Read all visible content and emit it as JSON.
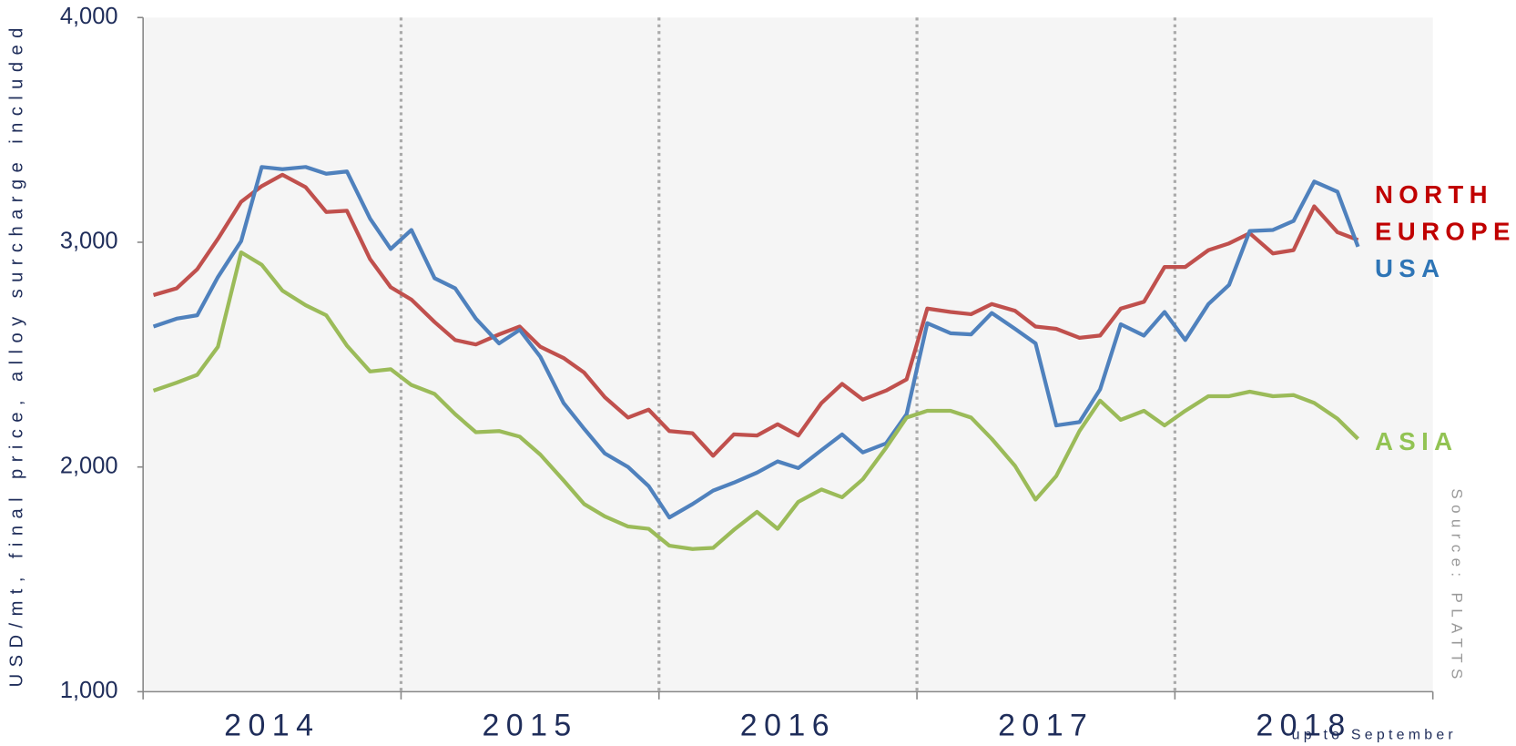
{
  "chart_data": {
    "type": "line",
    "y_label": "USD/mt, final price, alloy surcharge included",
    "source": "Source: PLATTS",
    "note": "up to September",
    "x_labels": [
      "2014",
      "2015",
      "2016",
      "2017",
      "2018"
    ],
    "xlim": [
      2014,
      2019
    ],
    "xticks": [
      2014,
      2015,
      2016,
      2017,
      2018,
      2019
    ],
    "ylim": [
      1000,
      4000
    ],
    "yticks": [
      {
        "value": 1000,
        "label": "1,000"
      },
      {
        "value": 2000,
        "label": "2,000"
      },
      {
        "value": 3000,
        "label": "3,000"
      },
      {
        "value": 4000,
        "label": "4,000"
      }
    ],
    "x": [
      2014.04,
      2014.13,
      2014.21,
      2014.29,
      2014.38,
      2014.46,
      2014.54,
      2014.63,
      2014.71,
      2014.79,
      2014.88,
      2014.96,
      2015.04,
      2015.13,
      2015.21,
      2015.29,
      2015.38,
      2015.46,
      2015.54,
      2015.63,
      2015.71,
      2015.79,
      2015.88,
      2015.96,
      2016.04,
      2016.13,
      2016.21,
      2016.29,
      2016.38,
      2016.46,
      2016.54,
      2016.63,
      2016.71,
      2016.79,
      2016.88,
      2016.96,
      2017.04,
      2017.13,
      2017.21,
      2017.29,
      2017.38,
      2017.46,
      2017.54,
      2017.63,
      2017.71,
      2017.79,
      2017.88,
      2017.96,
      2018.04,
      2018.13,
      2018.21,
      2018.29,
      2018.38,
      2018.46,
      2018.54,
      2018.63,
      2018.71
    ],
    "series": [
      {
        "name": "NORTH EUROPE",
        "color": "#c0504d",
        "label_color": "#c00000",
        "values": [
          2765,
          2795,
          2880,
          3015,
          3180,
          3250,
          3300,
          3245,
          3135,
          3140,
          2925,
          2800,
          2745,
          2645,
          2565,
          2545,
          2590,
          2625,
          2535,
          2485,
          2420,
          2310,
          2220,
          2255,
          2160,
          2150,
          2050,
          2145,
          2140,
          2190,
          2140,
          2285,
          2370,
          2300,
          2340,
          2390,
          2705,
          2690,
          2680,
          2725,
          2695,
          2625,
          2615,
          2575,
          2585,
          2705,
          2735,
          2890,
          2890,
          2965,
          2995,
          3040,
          2950,
          2965,
          3160,
          3045,
          3010
        ]
      },
      {
        "name": "USA",
        "color": "#4f81bd",
        "label_color": "#2e75b6",
        "values": [
          2625,
          2660,
          2675,
          2845,
          3005,
          3335,
          3325,
          3335,
          3305,
          3315,
          3105,
          2970,
          3055,
          2840,
          2795,
          2660,
          2550,
          2610,
          2490,
          2285,
          2170,
          2060,
          2000,
          1915,
          1775,
          1835,
          1895,
          1930,
          1975,
          2025,
          1995,
          2075,
          2145,
          2065,
          2105,
          2235,
          2640,
          2595,
          2590,
          2685,
          2615,
          2550,
          2185,
          2200,
          2345,
          2635,
          2585,
          2690,
          2565,
          2725,
          2810,
          3050,
          3055,
          3095,
          3270,
          3225,
          2980
        ]
      },
      {
        "name": "ASIA",
        "color": "#9bbb59",
        "label_color": "#92c353",
        "values": [
          2340,
          2375,
          2410,
          2535,
          2955,
          2900,
          2785,
          2720,
          2675,
          2540,
          2425,
          2435,
          2365,
          2325,
          2235,
          2155,
          2160,
          2135,
          2055,
          1940,
          1835,
          1780,
          1735,
          1725,
          1650,
          1635,
          1640,
          1720,
          1800,
          1725,
          1845,
          1900,
          1865,
          1945,
          2085,
          2220,
          2250,
          2250,
          2220,
          2125,
          2005,
          1855,
          1960,
          2160,
          2295,
          2210,
          2250,
          2185,
          2250,
          2315,
          2315,
          2335,
          2315,
          2320,
          2285,
          2215,
          2125
        ]
      }
    ]
  }
}
